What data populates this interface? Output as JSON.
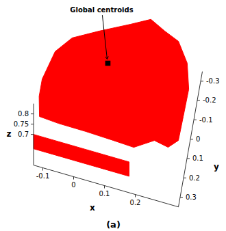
{
  "chart_data": {
    "type": "scatter3d",
    "caption": "(a)",
    "xlabel": "x",
    "ylabel": "y",
    "zlabel": "z",
    "xlim": [
      -0.13,
      0.34
    ],
    "ylim": [
      -0.35,
      0.35
    ],
    "zlim": [
      0.55,
      0.85
    ],
    "xticks": [
      -0.1,
      0,
      0.1,
      0.2
    ],
    "yticks": [
      -0.3,
      -0.2,
      -0.1,
      0,
      0.1,
      0.2,
      0.3
    ],
    "zticks": [
      0.7,
      0.75,
      0.8
    ],
    "color": "#ff0000",
    "point_cloud": [
      {
        "x": [
          -0.13,
          0.18,
          0.18,
          -0.13
        ],
        "y": [
          0.35,
          0.35,
          0.35,
          0.35
        ],
        "z": [
          0.7,
          0.7,
          0.63,
          0.63
        ]
      },
      {
        "x": [
          -0.128,
          -0.103,
          -0.058,
          0.023,
          0.115,
          0.175,
          0.224,
          0.272,
          0.311,
          0.33,
          0.328,
          0.326,
          0.298,
          0.252,
          0.192,
          0.125,
          0.036,
          -0.053,
          -0.116,
          -0.128
        ],
        "y": [
          0.116,
          -0.038,
          -0.129,
          -0.202,
          -0.279,
          -0.332,
          -0.294,
          -0.263,
          -0.168,
          -0.042,
          0.1,
          0.225,
          0.273,
          0.259,
          0.322,
          0.317,
          0.312,
          0.311,
          0.304,
          0.205
        ],
        "z": [
          0.75,
          0.75,
          0.75,
          0.75,
          0.75,
          0.75,
          0.75,
          0.75,
          0.75,
          0.75,
          0.75,
          0.75,
          0.75,
          0.75,
          0.75,
          0.75,
          0.75,
          0.75,
          0.75,
          0.75
        ]
      }
    ],
    "centroid": {
      "label": "Global centroids",
      "x": 0.066,
      "y": -0.055,
      "z": 0.75,
      "color": "#000000"
    }
  }
}
